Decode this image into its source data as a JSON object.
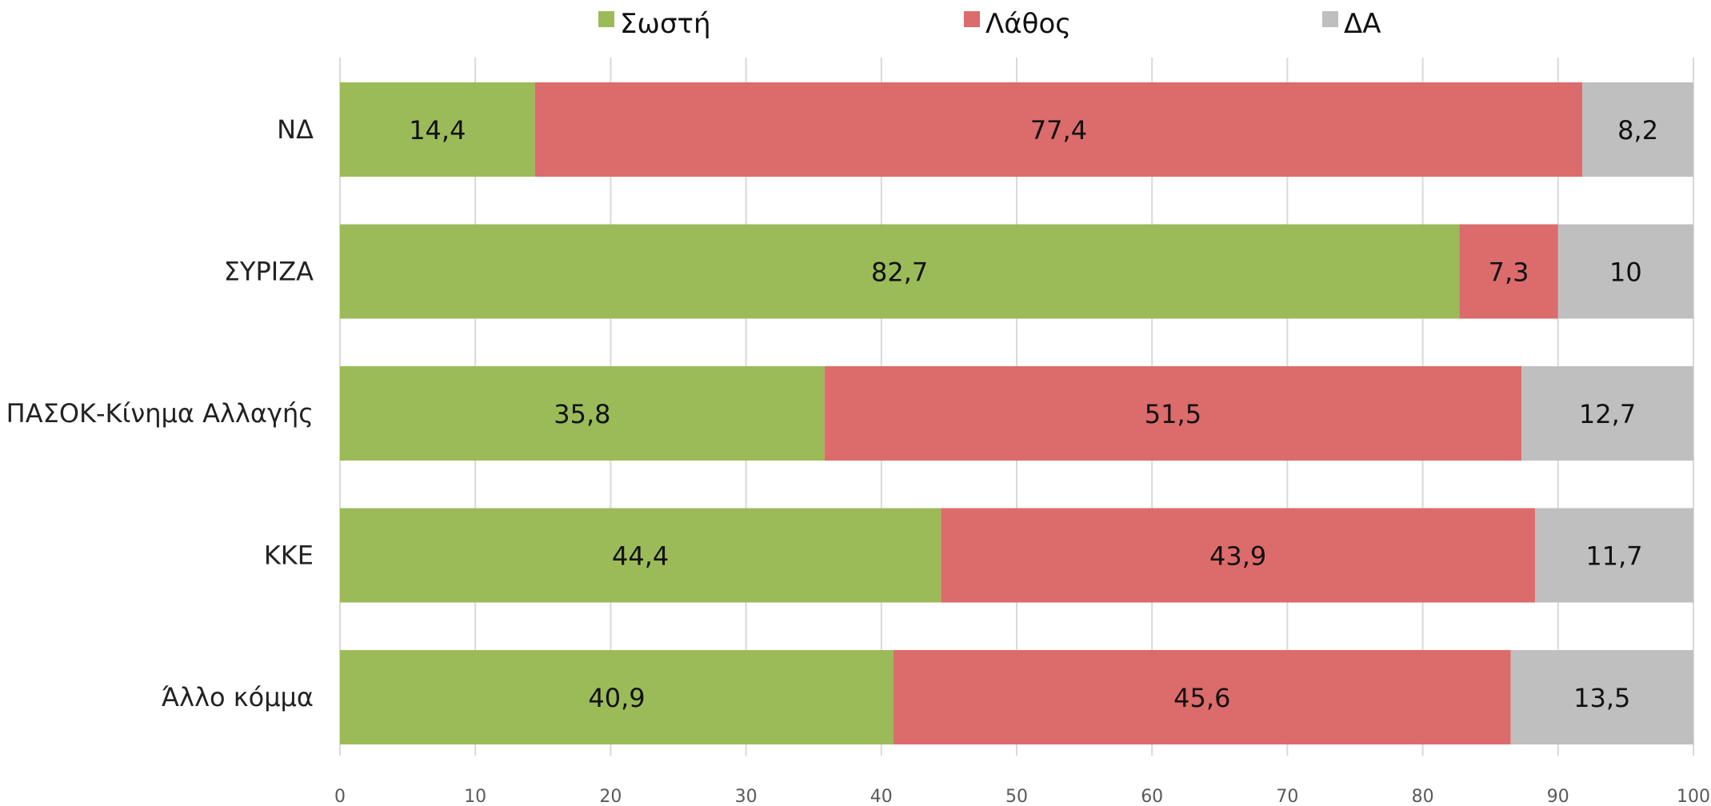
{
  "chart_data": {
    "type": "bar",
    "orientation": "horizontal",
    "stacked": true,
    "categories": [
      "ΝΔ",
      "ΣΥΡΙΖΑ",
      "ΠΑΣΟΚ-Κίνημα Αλλαγής",
      "ΚΚΕ",
      "Άλλο κόμμα"
    ],
    "series": [
      {
        "name": "Σωστή",
        "color": "#9bbb59",
        "values": [
          14.4,
          82.7,
          35.8,
          44.4,
          40.9
        ],
        "labels": [
          "14,4",
          "82,7",
          "35,8",
          "44,4",
          "40,9"
        ]
      },
      {
        "name": "Λάθος",
        "color": "#dc6b6b",
        "values": [
          77.4,
          7.3,
          51.5,
          43.9,
          45.6
        ],
        "labels": [
          "77,4",
          "7,3",
          "51,5",
          "43,9",
          "45,6"
        ]
      },
      {
        "name": "ΔΑ",
        "color": "#bfbfbf",
        "values": [
          8.2,
          10,
          12.7,
          11.7,
          13.5
        ],
        "labels": [
          "8,2",
          "10",
          "12,7",
          "11,7",
          "13,5"
        ]
      }
    ],
    "xlim": [
      0,
      100
    ],
    "xticks": [
      0,
      10,
      20,
      30,
      40,
      50,
      60,
      70,
      80,
      90,
      100
    ],
    "grid": true,
    "legend_position": "top"
  }
}
